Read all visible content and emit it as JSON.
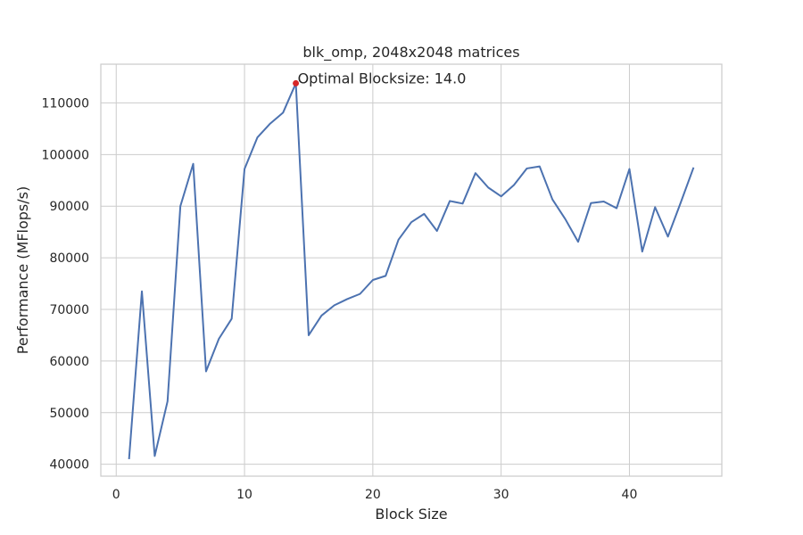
{
  "chart_data": {
    "type": "line",
    "title": "blk_omp, 2048x2048 matrices",
    "xlabel": "Block Size",
    "ylabel": "Performance (MFlops/s)",
    "xlim": [
      -1.2,
      47.2
    ],
    "ylim": [
      37700,
      117500
    ],
    "xticks": [
      0,
      10,
      20,
      30,
      40
    ],
    "yticks": [
      40000,
      50000,
      60000,
      70000,
      80000,
      90000,
      100000,
      110000
    ],
    "grid": true,
    "colors": {
      "line": "#4c72b0",
      "marker": "#d62728"
    },
    "series": [
      {
        "x": [
          1,
          2,
          3,
          4,
          5,
          6,
          7,
          8,
          9,
          10,
          11,
          12,
          13,
          14,
          15,
          16,
          17,
          18,
          19,
          20,
          21,
          22,
          23,
          24,
          25,
          26,
          27,
          28,
          29,
          30,
          31,
          32,
          33,
          34,
          35,
          36,
          37,
          38,
          39,
          40,
          41,
          42,
          43,
          44,
          45
        ],
        "y": [
          41000,
          73500,
          41600,
          52200,
          90000,
          98200,
          58000,
          64300,
          68200,
          97200,
          103300,
          106000,
          108100,
          113800,
          65000,
          68800,
          70800,
          72000,
          73000,
          75700,
          76500,
          83500,
          86900,
          88500,
          85200,
          91000,
          90500,
          96400,
          93600,
          91900,
          94100,
          97300,
          97700,
          91300,
          87500,
          83100,
          90600,
          90900,
          89600,
          97200,
          81200,
          89800,
          84100,
          90700,
          97500
        ]
      }
    ],
    "annotation": {
      "text": "Optimal Blocksize: 14.0",
      "x": 14,
      "y": 113800
    }
  }
}
